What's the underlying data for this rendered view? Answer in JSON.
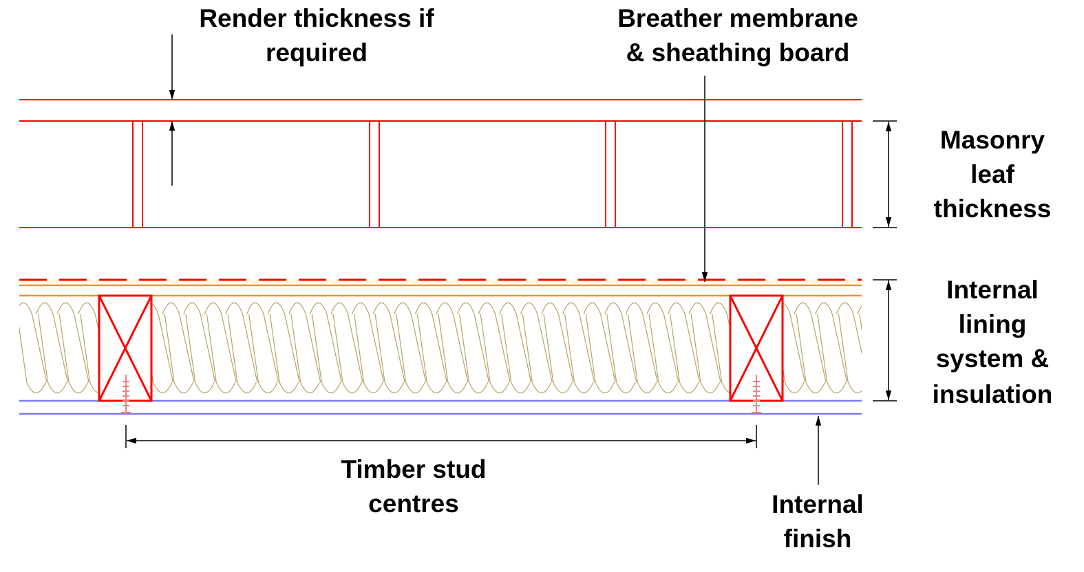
{
  "labels": {
    "render": [
      "Render thickness if",
      "required"
    ],
    "breather": [
      "Breather membrane",
      "& sheathing board"
    ],
    "masonry": [
      "Masonry",
      "leaf",
      "thickness"
    ],
    "lining": [
      "Internal",
      "lining",
      "system &",
      "insulation"
    ],
    "stud": [
      "Timber stud",
      "centres"
    ],
    "finish": [
      "Internal",
      "finish"
    ]
  },
  "colors": {
    "masonry": "#ff0000",
    "stud": "#ff0000",
    "membrane": "#ff0000",
    "sheathing": "#f7941d",
    "insulation": "#b5a46a",
    "finish": "#7b7bf0",
    "screw": "#f08080",
    "dimension": "#000000"
  }
}
